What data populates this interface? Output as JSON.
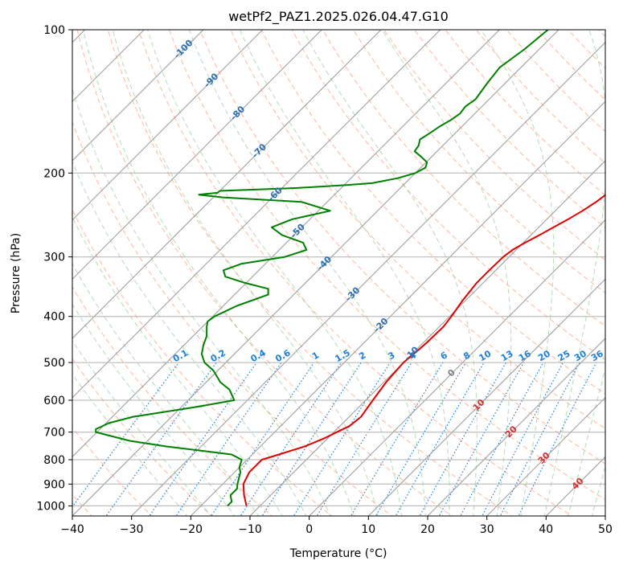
{
  "chart_data": {
    "type": "line",
    "title": "wetPf2_PAZ1.2025.026.04.47.G10",
    "xlabel": "Temperature (°C)",
    "ylabel": "Pressure (hPa)",
    "xlim": [
      -40,
      50
    ],
    "ylim": [
      1050,
      100
    ],
    "y_scale": "log",
    "skew_deg": 45,
    "grid": true,
    "x_ticks": [
      -40,
      -30,
      -20,
      -10,
      0,
      10,
      20,
      30,
      40,
      50
    ],
    "y_ticks": [
      100,
      200,
      300,
      400,
      500,
      600,
      700,
      800,
      900,
      1000
    ],
    "colors": {
      "temperature": "#e00000",
      "dewpoint": "#008000",
      "dry_adiabat": "#ff9e7a",
      "moist_adiabat": "#9fd49f",
      "mixing_ratio": "#1e7fd8",
      "isotherm": "#999999",
      "isotherm_label_cold": "#2b6fb0",
      "isotherm_label_warm": "#d23030",
      "isotherm_label_zero": "#808080"
    },
    "series": [
      {
        "key": "temperature",
        "p": [
          1000,
          950,
          900,
          850,
          800,
          780,
          750,
          720,
          700,
          680,
          650,
          600,
          550,
          500,
          470,
          450,
          420,
          400,
          370,
          340,
          320,
          300,
          290,
          280,
          270,
          260,
          250,
          240,
          230,
          220,
          210,
          200,
          190,
          180,
          170,
          160,
          150,
          140,
          130,
          120,
          110,
          100
        ],
        "t": [
          -12.3,
          -14.5,
          -16.5,
          -17.5,
          -17.5,
          -15.5,
          -12.5,
          -10.5,
          -9.5,
          -8.4,
          -8.0,
          -8.8,
          -9.6,
          -10.0,
          -9.6,
          -9.4,
          -9.3,
          -9.7,
          -10.5,
          -11.1,
          -11.1,
          -11.0,
          -10.6,
          -9.7,
          -8.6,
          -7.5,
          -6.4,
          -5.4,
          -4.6,
          -4.1,
          -3.6,
          -3.4,
          -3.2,
          -3.1,
          -3.0,
          -3.0,
          -2.8,
          -3.0,
          -3.0,
          -2.7,
          -2.1,
          -2.0
        ]
      },
      {
        "key": "dewpoint",
        "p": [
          1000,
          980,
          950,
          920,
          900,
          870,
          850,
          830,
          800,
          780,
          770,
          750,
          730,
          700,
          690,
          670,
          650,
          620,
          600,
          570,
          550,
          520,
          500,
          480,
          460,
          440,
          420,
          410,
          400,
          380,
          360,
          350,
          340,
          330,
          320,
          310,
          300,
          290,
          280,
          270,
          260,
          250,
          240,
          230,
          225,
          222,
          220,
          218,
          215,
          212,
          210,
          205,
          200,
          195,
          190,
          185,
          180,
          175,
          170,
          165,
          160,
          155,
          150,
          145,
          140,
          130,
          120,
          110,
          100
        ],
        "t": [
          -15.5,
          -15.5,
          -16.8,
          -16.8,
          -17.5,
          -18.4,
          -19.0,
          -20.0,
          -20.9,
          -23.5,
          -27.5,
          -36.0,
          -43.0,
          -50.2,
          -50.7,
          -49.5,
          -46.5,
          -37.5,
          -32.2,
          -34.8,
          -37.6,
          -40.7,
          -43.6,
          -45.5,
          -46.7,
          -47.7,
          -49.3,
          -50.0,
          -49.7,
          -47.7,
          -44.3,
          -45.3,
          -50.3,
          -54.6,
          -56.0,
          -54.0,
          -47.9,
          -45.4,
          -47.2,
          -52.0,
          -55.1,
          -53.0,
          -48.0,
          -54.3,
          -68.4,
          -72.9,
          -70.1,
          -70.0,
          -57.7,
          -49.6,
          -45.6,
          -42.1,
          -40.0,
          -39.2,
          -39.8,
          -41.7,
          -43.8,
          -44.1,
          -44.9,
          -44.3,
          -43.8,
          -43.0,
          -42.5,
          -42.8,
          -42.3,
          -43.0,
          -43.6,
          -42.5,
          -41.8
        ]
      }
    ],
    "isotherm_labels": [
      {
        "t": -100,
        "p": 110,
        "text": "-100"
      },
      {
        "t": -90,
        "p": 128,
        "text": "-90"
      },
      {
        "t": -80,
        "p": 150,
        "text": "-80"
      },
      {
        "t": -70,
        "p": 180,
        "text": "-70"
      },
      {
        "t": -60,
        "p": 222,
        "text": "-60"
      },
      {
        "t": -50,
        "p": 265,
        "text": "-50"
      },
      {
        "t": -40,
        "p": 310,
        "text": "-40"
      },
      {
        "t": -30,
        "p": 360,
        "text": "-30"
      },
      {
        "t": -20,
        "p": 418,
        "text": "-20"
      },
      {
        "t": -10,
        "p": 480,
        "text": "-10"
      },
      {
        "t": 0,
        "p": 527,
        "text": "0"
      },
      {
        "t": 10,
        "p": 615,
        "text": "10"
      },
      {
        "t": 20,
        "p": 700,
        "text": "20"
      },
      {
        "t": 30,
        "p": 795,
        "text": "30"
      },
      {
        "t": 40,
        "p": 900,
        "text": "40"
      }
    ],
    "mixing_ratio_labels": [
      "0.1",
      "0.2",
      "0.4",
      "0.6",
      "1",
      "1.5",
      "2",
      "3",
      "4",
      "6",
      "8",
      "10",
      "13",
      "16",
      "20",
      "25",
      "30",
      "36"
    ],
    "mixing_ratio_label_p": 490
  }
}
